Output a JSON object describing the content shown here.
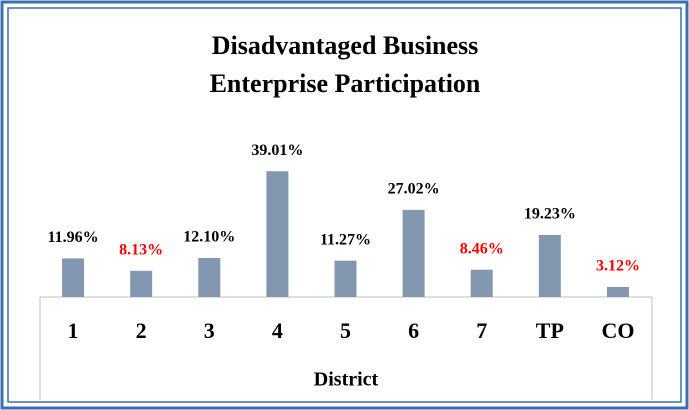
{
  "chart_data": {
    "type": "bar",
    "title": [
      "Disadvantaged Business",
      "Enterprise Participation"
    ],
    "x_label": "District",
    "categories": [
      "1",
      "2",
      "3",
      "4",
      "5",
      "6",
      "7",
      "TP",
      "CO"
    ],
    "values": [
      11.96,
      8.13,
      12.1,
      39.01,
      11.27,
      27.02,
      8.46,
      19.23,
      3.12
    ],
    "value_labels": [
      "11.96%",
      "8.13%",
      "12.10%",
      "39.01%",
      "11.27%",
      "27.02%",
      "8.46%",
      "19.23%",
      "3.12%"
    ],
    "value_label_colors": [
      "#000000",
      "#ff0000",
      "#000000",
      "#000000",
      "#000000",
      "#000000",
      "#ff0000",
      "#000000",
      "#ff0000"
    ],
    "color": "#8497b0",
    "ylim": [
      0,
      40
    ]
  }
}
